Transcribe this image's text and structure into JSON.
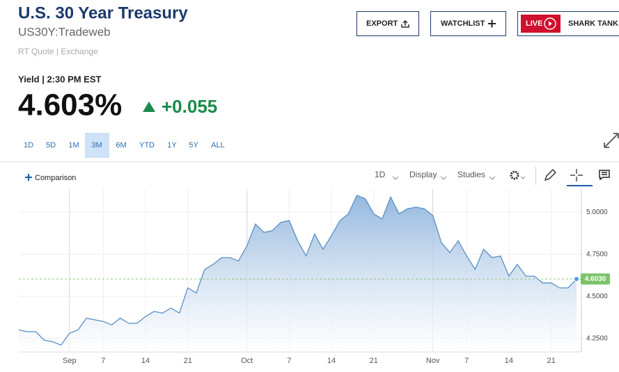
{
  "header": {
    "title": "U.S. 30 Year Treasury",
    "symbol": "US30Y:Tradeweb",
    "quote_source": "RT Quote | Exchange"
  },
  "actions": {
    "export": "EXPORT",
    "watchlist": "WATCHLIST",
    "live": "LIVE",
    "promo": "SHARK TANK"
  },
  "quote": {
    "label": "Yield | 2:30 PM EST",
    "last": "4.603%",
    "change": "+0.055"
  },
  "ranges": {
    "options": [
      "1D",
      "5D",
      "1M",
      "3M",
      "6M",
      "YTD",
      "1Y",
      "5Y",
      "ALL"
    ],
    "active": "3M"
  },
  "toolbar": {
    "comparison": "Comparison",
    "interval": "1D",
    "display": "Display",
    "studies": "Studies"
  },
  "chart_data": {
    "type": "area",
    "color": "#5a8ec6",
    "categories": [
      null,
      null,
      null,
      null,
      null,
      null,
      "Sep",
      null,
      null,
      null,
      "7",
      null,
      null,
      null,
      null,
      "14",
      null,
      null,
      null,
      null,
      "21",
      null,
      null,
      null,
      null,
      null,
      null,
      "Oct",
      null,
      null,
      null,
      null,
      "7",
      null,
      null,
      null,
      null,
      "14",
      null,
      null,
      null,
      null,
      "21",
      null,
      null,
      null,
      null,
      null,
      null,
      "Nov",
      null,
      null,
      null,
      "7",
      null,
      null,
      null,
      null,
      "14",
      null,
      null,
      null,
      null,
      "21",
      null,
      null,
      null
    ],
    "values": [
      4.3,
      4.29,
      4.29,
      4.24,
      4.23,
      4.21,
      4.28,
      4.3,
      4.37,
      4.36,
      4.35,
      4.33,
      4.37,
      4.34,
      4.34,
      4.38,
      4.41,
      4.4,
      4.43,
      4.4,
      4.55,
      4.52,
      4.66,
      4.69,
      4.73,
      4.73,
      4.71,
      4.8,
      4.93,
      4.88,
      4.89,
      4.94,
      4.95,
      4.83,
      4.74,
      4.87,
      4.78,
      4.86,
      4.95,
      4.99,
      5.1,
      5.08,
      4.99,
      4.96,
      5.09,
      4.99,
      5.02,
      5.03,
      5.02,
      4.98,
      4.82,
      4.76,
      4.83,
      4.74,
      4.66,
      4.78,
      4.73,
      4.74,
      4.62,
      4.69,
      4.62,
      4.62,
      4.58,
      4.58,
      4.55,
      4.55,
      4.603
    ],
    "ylim": [
      4.17,
      5.137
    ],
    "yticks": [
      {
        "value": 4.25,
        "label": "4.2500"
      },
      {
        "value": 4.5,
        "label": "4.5000"
      },
      {
        "value": 4.75,
        "label": "4.7500"
      },
      {
        "value": 5.0,
        "label": "5.0000"
      }
    ],
    "last_marker": {
      "value": 4.603,
      "label": "4.6030"
    },
    "grid": true
  }
}
